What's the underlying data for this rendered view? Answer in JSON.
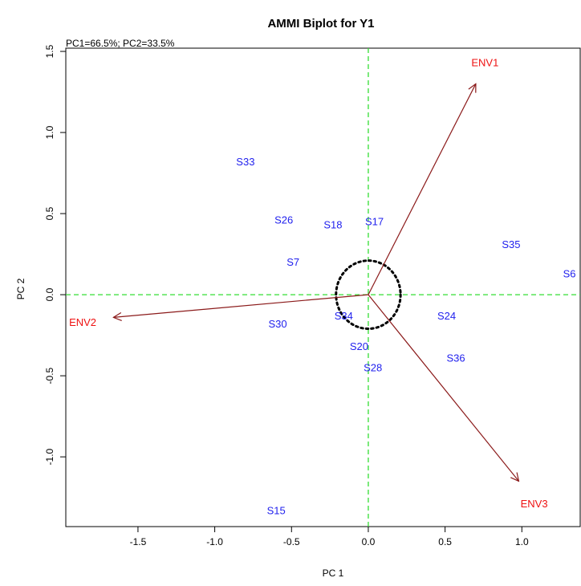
{
  "chart_data": {
    "type": "scatter",
    "title": "AMMI Biplot for Y1",
    "subtitle": "PC1=66.5%; PC2=33.5%",
    "xlabel": "PC 1",
    "ylabel": "PC 2",
    "xlim": [
      -1.97,
      1.38
    ],
    "ylim": [
      -1.43,
      1.52
    ],
    "xticks": [
      -1.5,
      -1.0,
      -0.5,
      0.0,
      0.5,
      1.0
    ],
    "xtick_labels": [
      "-1.5",
      "-1.0",
      "-0.5",
      "0.0",
      "0.5",
      "1.0"
    ],
    "yticks": [
      -1.0,
      -0.5,
      0.0,
      0.5,
      1.0,
      1.5
    ],
    "ytick_labels": [
      "-1.0",
      "-0.5",
      "0.0",
      "0.5",
      "1.0",
      "1.5"
    ],
    "grid": false,
    "reference_lines": {
      "x": 0,
      "y": 0,
      "style": "dashed",
      "color": "#33dd33"
    },
    "circle": {
      "center": [
        0,
        0
      ],
      "radius": 0.21,
      "style": "dotted",
      "color": "#000000"
    },
    "genotypes": [
      {
        "label": "S33",
        "x": -0.8,
        "y": 0.82
      },
      {
        "label": "S26",
        "x": -0.55,
        "y": 0.46
      },
      {
        "label": "S18",
        "x": -0.23,
        "y": 0.43
      },
      {
        "label": "S17",
        "x": 0.04,
        "y": 0.45
      },
      {
        "label": "S7",
        "x": -0.49,
        "y": 0.2
      },
      {
        "label": "S35",
        "x": 0.93,
        "y": 0.31
      },
      {
        "label": "S6",
        "x": 1.31,
        "y": 0.13
      },
      {
        "label": "S30",
        "x": -0.59,
        "y": -0.18
      },
      {
        "label": "S34",
        "x": -0.16,
        "y": -0.13
      },
      {
        "label": "S24",
        "x": 0.51,
        "y": -0.13
      },
      {
        "label": "S20",
        "x": -0.06,
        "y": -0.32
      },
      {
        "label": "S36",
        "x": 0.57,
        "y": -0.39
      },
      {
        "label": "S28",
        "x": 0.03,
        "y": -0.45
      },
      {
        "label": "S15",
        "x": -0.6,
        "y": -1.33
      }
    ],
    "environments": [
      {
        "label": "ENV1",
        "x": 0.7,
        "y": 1.3,
        "label_x": 0.76,
        "label_y": 1.43
      },
      {
        "label": "ENV2",
        "x": -1.66,
        "y": -0.14,
        "label_x": -1.86,
        "label_y": -0.17
      },
      {
        "label": "ENV3",
        "x": 0.98,
        "y": -1.15,
        "label_x": 1.08,
        "label_y": -1.29
      }
    ],
    "colors": {
      "genotype": "#2222ee",
      "environment_label": "#ee1111",
      "arrow": "#8b1a1a",
      "refline": "#33dd33",
      "circle": "#000000"
    }
  }
}
